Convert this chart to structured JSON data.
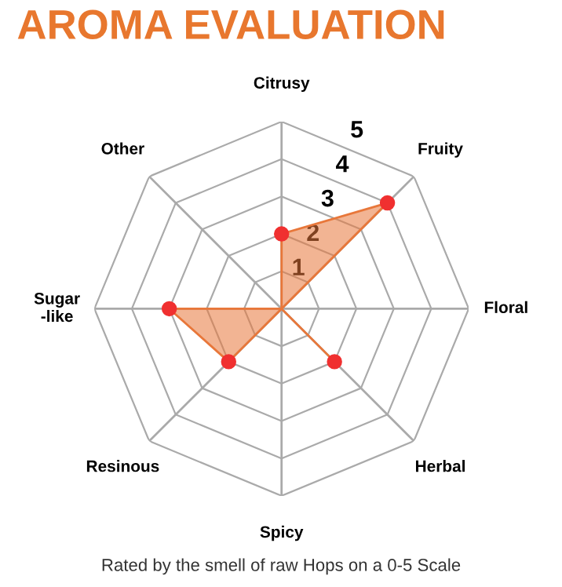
{
  "chart_data": {
    "type": "radar",
    "title": "AROMA EVALUATION",
    "categories": [
      "Citrusy",
      "Fruity",
      "Floral",
      "Herbal",
      "Spicy",
      "Resinous",
      "Sugar\n-like",
      "Other"
    ],
    "series": [
      {
        "color": "#e8773a",
        "values": [
          2,
          4,
          0,
          2,
          0,
          2,
          3,
          0
        ]
      }
    ],
    "ylim": [
      0,
      5
    ],
    "yticks": [
      1,
      2,
      3,
      4,
      5
    ],
    "marker": "circle",
    "annotations": [
      "Rated by the smell of raw Hops on a 0-5 Scale"
    ]
  }
}
